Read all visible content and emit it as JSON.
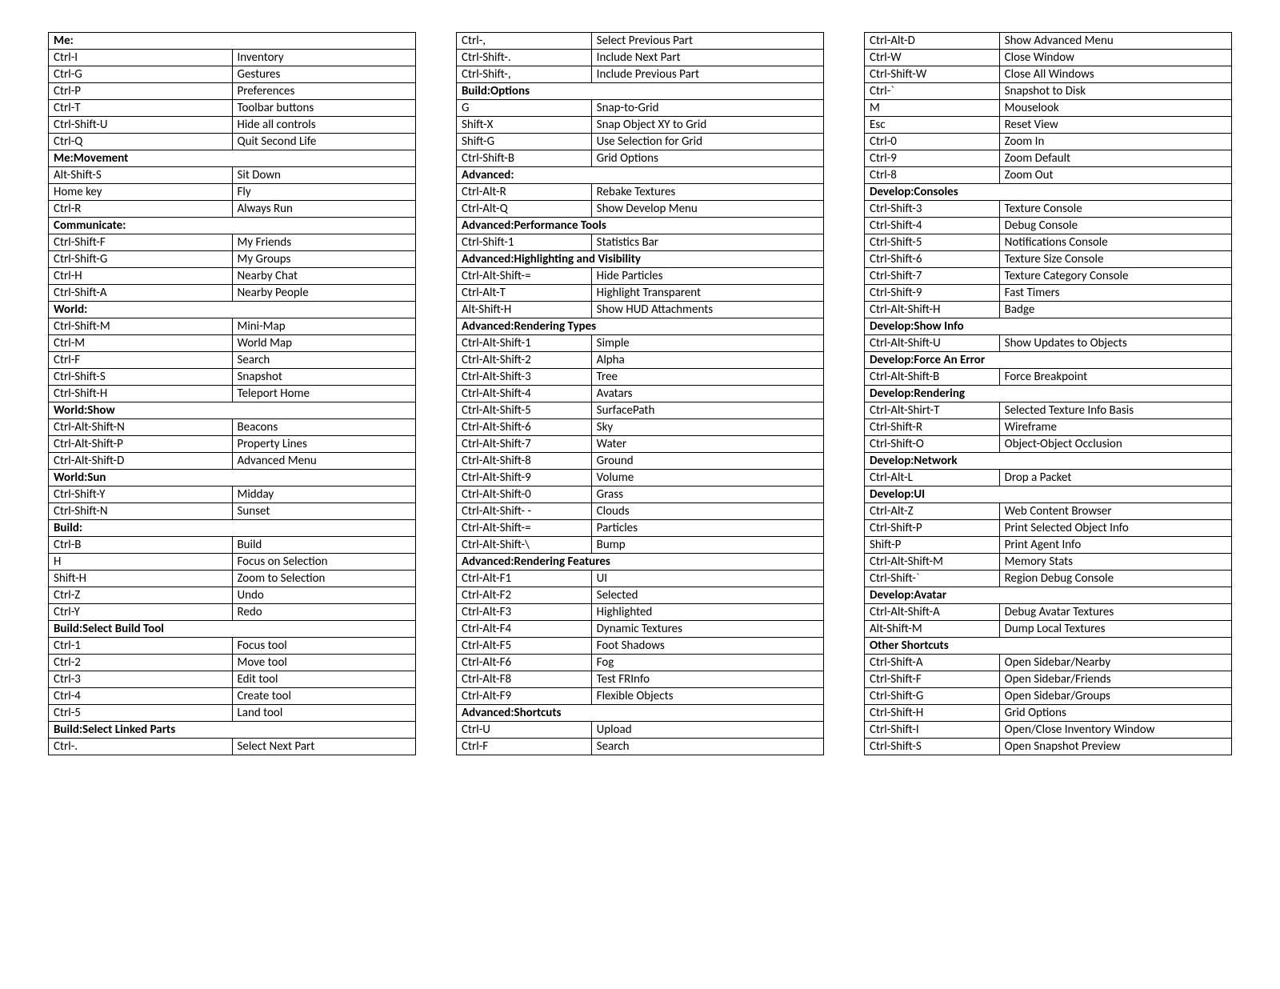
{
  "layout": {
    "columns": 3,
    "keyColWidthPct": 36,
    "rowHeightPx": 20,
    "fontFamily": "Calibri, Arial, sans-serif",
    "fontSizePx": 15,
    "borderColor": "#000000",
    "background": "#ffffff",
    "textColor": "#000000"
  },
  "columns": [
    [
      {
        "type": "header",
        "label": "Me:"
      },
      {
        "type": "row",
        "key": "Ctrl-I",
        "val": "Inventory"
      },
      {
        "type": "row",
        "key": "Ctrl-G",
        "val": "Gestures"
      },
      {
        "type": "row",
        "key": "Ctrl-P",
        "val": "Preferences"
      },
      {
        "type": "row",
        "key": "Ctrl-T",
        "val": "Toolbar buttons"
      },
      {
        "type": "row",
        "key": "Ctrl-Shift-U",
        "val": "Hide all controls"
      },
      {
        "type": "row",
        "key": "Ctrl-Q",
        "val": "Quit Second Life"
      },
      {
        "type": "header",
        "label": "Me:Movement"
      },
      {
        "type": "row",
        "key": "Alt-Shift-S",
        "val": "Sit Down"
      },
      {
        "type": "row",
        "key": "Home key",
        "val": "Fly"
      },
      {
        "type": "row",
        "key": "Ctrl-R",
        "val": "Always Run"
      },
      {
        "type": "header",
        "label": "Communicate:"
      },
      {
        "type": "row",
        "key": "Ctrl-Shift-F",
        "val": "My Friends"
      },
      {
        "type": "row",
        "key": "Ctrl-Shift-G",
        "val": "My Groups"
      },
      {
        "type": "row",
        "key": "Ctrl-H",
        "val": "Nearby Chat"
      },
      {
        "type": "row",
        "key": "Ctrl-Shift-A",
        "val": "Nearby People"
      },
      {
        "type": "header",
        "label": "World:"
      },
      {
        "type": "row",
        "key": "Ctrl-Shift-M",
        "val": "Mini-Map"
      },
      {
        "type": "row",
        "key": "Ctrl-M",
        "val": "World Map"
      },
      {
        "type": "row",
        "key": "Ctrl-F",
        "val": "Search"
      },
      {
        "type": "row",
        "key": "Ctrl-Shift-S",
        "val": "Snapshot"
      },
      {
        "type": "row",
        "key": "Ctrl-Shift-H",
        "val": "Teleport Home"
      },
      {
        "type": "header",
        "label": "World:Show"
      },
      {
        "type": "row",
        "key": "Ctrl-Alt-Shift-N",
        "val": "Beacons"
      },
      {
        "type": "row",
        "key": "Ctrl-Alt-Shift-P",
        "val": "Property Lines"
      },
      {
        "type": "row",
        "key": "Ctrl-Alt-Shift-D",
        "val": "Advanced Menu"
      },
      {
        "type": "header",
        "label": "World:Sun"
      },
      {
        "type": "row",
        "key": "Ctrl-Shift-Y",
        "val": "Midday"
      },
      {
        "type": "row",
        "key": "Ctrl-Shift-N",
        "val": "Sunset"
      },
      {
        "type": "header",
        "label": "Build:"
      },
      {
        "type": "row",
        "key": "Ctrl-B",
        "val": "Build"
      },
      {
        "type": "row",
        "key": "H",
        "val": "Focus on Selection"
      },
      {
        "type": "row",
        "key": "Shift-H",
        "val": "Zoom to Selection"
      },
      {
        "type": "row",
        "key": "Ctrl-Z",
        "val": "Undo"
      },
      {
        "type": "row",
        "key": "Ctrl-Y",
        "val": "Redo"
      },
      {
        "type": "header",
        "label": "Build:Select Build Tool"
      },
      {
        "type": "row",
        "key": "Ctrl-1",
        "val": "Focus tool"
      },
      {
        "type": "row",
        "key": "Ctrl-2",
        "val": "Move tool"
      },
      {
        "type": "row",
        "key": "Ctrl-3",
        "val": "Edit tool"
      },
      {
        "type": "row",
        "key": "Ctrl-4",
        "val": "Create tool"
      },
      {
        "type": "row",
        "key": "Ctrl-5",
        "val": "Land tool"
      },
      {
        "type": "header",
        "label": "Build:Select Linked Parts"
      },
      {
        "type": "row",
        "key": "Ctrl-.",
        "val": "Select Next Part"
      }
    ],
    [
      {
        "type": "row",
        "key": "Ctrl-,",
        "val": "Select Previous Part"
      },
      {
        "type": "row",
        "key": "Ctrl-Shift-.",
        "val": "Include Next Part"
      },
      {
        "type": "row",
        "key": "Ctrl-Shift-,",
        "val": "Include Previous Part"
      },
      {
        "type": "header",
        "label": "Build:Options"
      },
      {
        "type": "row",
        "key": "G",
        "val": "Snap-to-Grid"
      },
      {
        "type": "row",
        "key": "Shift-X",
        "val": "Snap Object XY to Grid"
      },
      {
        "type": "row",
        "key": "Shift-G",
        "val": "Use Selection for Grid"
      },
      {
        "type": "row",
        "key": "Ctrl-Shift-B",
        "val": "Grid Options"
      },
      {
        "type": "header",
        "label": "Advanced:"
      },
      {
        "type": "row",
        "key": "Ctrl-Alt-R",
        "val": "Rebake Textures"
      },
      {
        "type": "row",
        "key": "Ctrl-Alt-Q",
        "val": "Show Develop Menu"
      },
      {
        "type": "header",
        "label": "Advanced:Performance Tools"
      },
      {
        "type": "row",
        "key": "Ctrl-Shift-1",
        "val": "Statistics Bar"
      },
      {
        "type": "header",
        "label": "Advanced:Highlighting and Visibility"
      },
      {
        "type": "row",
        "key": "Ctrl-Alt-Shift-=",
        "val": "Hide Particles"
      },
      {
        "type": "row",
        "key": "Ctrl-Alt-T",
        "val": "Highlight Transparent"
      },
      {
        "type": "row",
        "key": "Alt-Shift-H",
        "val": "Show HUD Attachments"
      },
      {
        "type": "header",
        "label": "Advanced:Rendering Types"
      },
      {
        "type": "row",
        "key": "Ctrl-Alt-Shift-1",
        "val": "Simple"
      },
      {
        "type": "row",
        "key": "Ctrl-Alt-Shift-2",
        "val": "Alpha"
      },
      {
        "type": "row",
        "key": "Ctrl-Alt-Shift-3",
        "val": "Tree"
      },
      {
        "type": "row",
        "key": "Ctrl-Alt-Shift-4",
        "val": "Avatars"
      },
      {
        "type": "row",
        "key": "Ctrl-Alt-Shift-5",
        "val": "SurfacePath"
      },
      {
        "type": "row",
        "key": "Ctrl-Alt-Shift-6",
        "val": "Sky"
      },
      {
        "type": "row",
        "key": "Ctrl-Alt-Shift-7",
        "val": "Water"
      },
      {
        "type": "row",
        "key": "Ctrl-Alt-Shift-8",
        "val": "Ground"
      },
      {
        "type": "row",
        "key": "Ctrl-Alt-Shift-9",
        "val": "Volume"
      },
      {
        "type": "row",
        "key": "Ctrl-Alt-Shift-0",
        "val": "Grass"
      },
      {
        "type": "row",
        "key": "Ctrl-Alt-Shift- -",
        "val": "Clouds"
      },
      {
        "type": "row",
        "key": "Ctrl-Alt-Shift-=",
        "val": "Particles"
      },
      {
        "type": "row",
        "key": "Ctrl-Alt-Shift-\\",
        "val": "Bump"
      },
      {
        "type": "header",
        "label": "Advanced:Rendering Features"
      },
      {
        "type": "row",
        "key": "Ctrl-Alt-F1",
        "val": "UI"
      },
      {
        "type": "row",
        "key": "Ctrl-Alt-F2",
        "val": "Selected"
      },
      {
        "type": "row",
        "key": "Ctrl-Alt-F3",
        "val": "Highlighted"
      },
      {
        "type": "row",
        "key": "Ctrl-Alt-F4",
        "val": "Dynamic Textures"
      },
      {
        "type": "row",
        "key": "Ctrl-Alt-F5",
        "val": "Foot Shadows"
      },
      {
        "type": "row",
        "key": "Ctrl-Alt-F6",
        "val": "Fog"
      },
      {
        "type": "row",
        "key": "Ctrl-Alt-F8",
        "val": "Test FRInfo"
      },
      {
        "type": "row",
        "key": "Ctrl-Alt-F9",
        "val": "Flexible Objects"
      },
      {
        "type": "header",
        "label": "Advanced:Shortcuts"
      },
      {
        "type": "row",
        "key": "Ctrl-U",
        "val": "Upload"
      },
      {
        "type": "row",
        "key": "Ctrl-F",
        "val": "Search"
      }
    ],
    [
      {
        "type": "row",
        "key": "Ctrl-Alt-D",
        "val": "Show Advanced Menu"
      },
      {
        "type": "row",
        "key": "Ctrl-W",
        "val": "Close Window"
      },
      {
        "type": "row",
        "key": "Ctrl-Shift-W",
        "val": "Close All Windows"
      },
      {
        "type": "row",
        "key": "Ctrl-`",
        "val": "Snapshot to Disk"
      },
      {
        "type": "row",
        "key": "M",
        "val": "Mouselook"
      },
      {
        "type": "row",
        "key": "Esc",
        "val": "Reset View"
      },
      {
        "type": "row",
        "key": "Ctrl-0",
        "val": "Zoom In"
      },
      {
        "type": "row",
        "key": "Ctrl-9",
        "val": "Zoom Default"
      },
      {
        "type": "row",
        "key": "Ctrl-8",
        "val": "Zoom Out"
      },
      {
        "type": "header",
        "label": "Develop:Consoles"
      },
      {
        "type": "row",
        "key": "Ctrl-Shift-3",
        "val": "Texture Console"
      },
      {
        "type": "row",
        "key": "Ctrl-Shift-4",
        "val": "Debug Console"
      },
      {
        "type": "row",
        "key": "Ctrl-Shift-5",
        "val": "Notifications Console"
      },
      {
        "type": "row",
        "key": "Ctrl-Shift-6",
        "val": "Texture Size Console"
      },
      {
        "type": "row",
        "key": "Ctrl-Shift-7",
        "val": "Texture Category Console"
      },
      {
        "type": "row",
        "key": "Ctrl-Shift-9",
        "val": "Fast Timers"
      },
      {
        "type": "row",
        "key": "Ctrl-Alt-Shift-H",
        "val": "Badge"
      },
      {
        "type": "header",
        "label": "Develop:Show Info"
      },
      {
        "type": "row",
        "key": "Ctrl-Alt-Shift-U",
        "val": "Show Updates to Objects"
      },
      {
        "type": "header",
        "label": "Develop:Force An Error"
      },
      {
        "type": "row",
        "key": "Ctrl-Alt-Shift-B",
        "val": "Force Breakpoint"
      },
      {
        "type": "header",
        "label": "Develop:Rendering"
      },
      {
        "type": "row",
        "key": "Ctrl-Alt-Shirt-T",
        "val": "Selected Texture Info Basis"
      },
      {
        "type": "row",
        "key": "Ctrl-Shift-R",
        "val": "Wireframe"
      },
      {
        "type": "row",
        "key": "Ctrl-Shift-O",
        "val": "Object-Object Occlusion"
      },
      {
        "type": "header",
        "label": "Develop:Network"
      },
      {
        "type": "row",
        "key": "Ctrl-Alt-L",
        "val": "Drop a Packet"
      },
      {
        "type": "header",
        "label": "Develop:UI"
      },
      {
        "type": "row",
        "key": "Ctrl-Alt-Z",
        "val": "Web Content Browser"
      },
      {
        "type": "row",
        "key": "Ctrl-Shift-P",
        "val": "Print Selected Object Info"
      },
      {
        "type": "row",
        "key": "Shift-P",
        "val": "Print Agent Info"
      },
      {
        "type": "row",
        "key": "Ctrl-Alt-Shift-M",
        "val": "Memory Stats"
      },
      {
        "type": "row",
        "key": "Ctrl-Shift-`",
        "val": "Region Debug Console"
      },
      {
        "type": "header",
        "label": "Develop:Avatar"
      },
      {
        "type": "row",
        "key": "Ctrl-Alt-Shift-A",
        "val": "Debug Avatar Textures"
      },
      {
        "type": "row",
        "key": "Alt-Shift-M",
        "val": "Dump Local Textures"
      },
      {
        "type": "header",
        "label": "Other Shortcuts"
      },
      {
        "type": "row",
        "key": "Ctrl-Shift-A",
        "val": "Open Sidebar/Nearby"
      },
      {
        "type": "row",
        "key": "Ctrl-Shift-F",
        "val": "Open Sidebar/Friends"
      },
      {
        "type": "row",
        "key": "Ctrl-Shift-G",
        "val": "Open Sidebar/Groups"
      },
      {
        "type": "row",
        "key": "Ctrl-Shift-H",
        "val": "Grid Options"
      },
      {
        "type": "row",
        "key": "Ctrl-Shift-I",
        "val": "Open/Close Inventory Window"
      },
      {
        "type": "row",
        "key": "Ctrl-Shift-S",
        "val": "Open Snapshot Preview"
      }
    ]
  ]
}
